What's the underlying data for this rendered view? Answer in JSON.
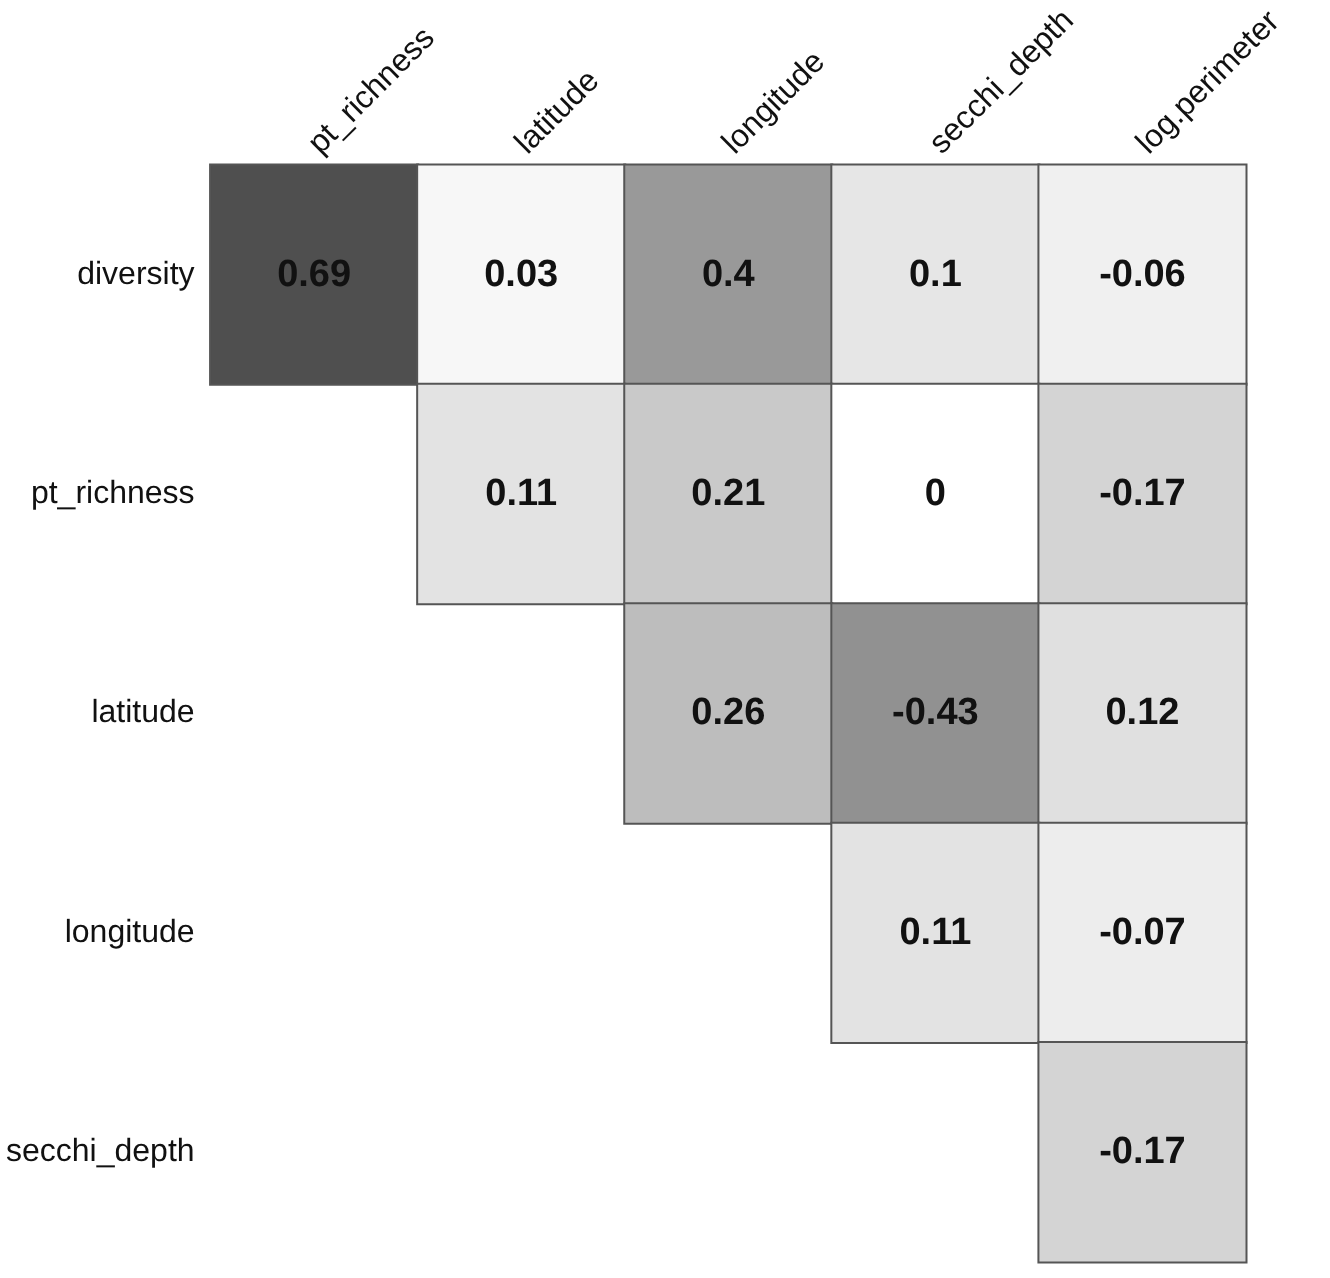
{
  "chart_data": {
    "type": "heatmap",
    "categories": [
      "pt_richness",
      "latitude",
      "longitude",
      "secchi_depth",
      "log.perimeter"
    ],
    "y_categories": [
      "diversity",
      "pt_richness",
      "latitude",
      "longitude",
      "secchi_depth"
    ],
    "cells": [
      [
        0.69,
        0.03,
        0.4,
        0.1,
        -0.06
      ],
      [
        null,
        0.11,
        0.21,
        0,
        -0.17
      ],
      [
        null,
        null,
        0.26,
        -0.43,
        0.12
      ],
      [
        null,
        null,
        null,
        0.11,
        -0.07
      ],
      [
        null,
        null,
        null,
        null,
        -0.17
      ]
    ],
    "data_labels": true
  }
}
